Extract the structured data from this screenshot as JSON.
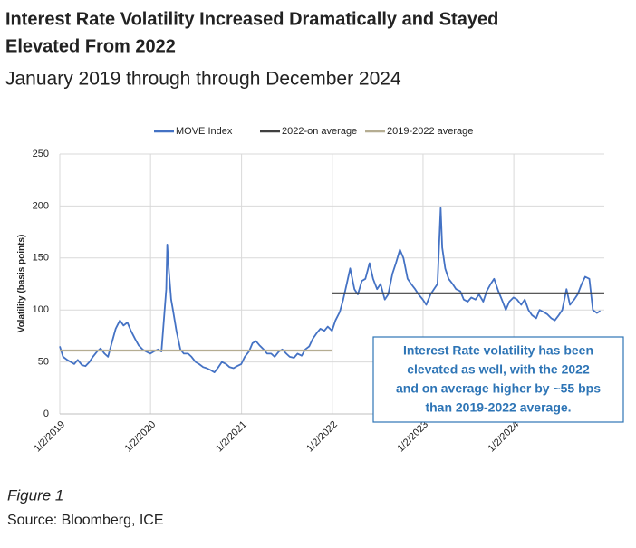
{
  "chart_data": {
    "type": "line",
    "title": [
      "Interest Rate Volatility Increased Dramatically and Stayed",
      "Elevated From 2022"
    ],
    "subtitle": "January 2019 through through December 2024",
    "y_label": "Volatility (basis points)",
    "caption": "Figure 1",
    "source": "Source: Bloomberg, ICE",
    "annotation": [
      "Interest Rate volatility has been",
      "elevated as well, with the 2022",
      "and on average higher by ~55 bps",
      "than 2019-2022 average."
    ],
    "xlim": [
      "2019-01-02",
      "2024-12-31"
    ],
    "xticks": [
      {
        "value": "2019-01-02",
        "label": "1/2/2019"
      },
      {
        "value": "2020-01-02",
        "label": "1/2/2020"
      },
      {
        "value": "2021-01-02",
        "label": "1/2/2021"
      },
      {
        "value": "2022-01-02",
        "label": "1/2/2022"
      },
      {
        "value": "2023-01-02",
        "label": "1/2/2023"
      },
      {
        "value": "2024-01-02",
        "label": "1/2/2024"
      }
    ],
    "ylim": [
      0,
      250
    ],
    "yticks": [
      0,
      50,
      100,
      150,
      200,
      250
    ],
    "grid": true,
    "legend": "top",
    "series": [
      {
        "name": "MOVE Index",
        "color": "#4472c4",
        "x": [
          "2019-01-02",
          "2019-01-15",
          "2019-02-01",
          "2019-02-15",
          "2019-03-01",
          "2019-03-15",
          "2019-04-01",
          "2019-04-15",
          "2019-05-01",
          "2019-05-15",
          "2019-06-01",
          "2019-06-15",
          "2019-07-01",
          "2019-07-15",
          "2019-08-01",
          "2019-08-15",
          "2019-09-01",
          "2019-09-15",
          "2019-10-01",
          "2019-10-15",
          "2019-11-01",
          "2019-11-15",
          "2019-12-01",
          "2019-12-15",
          "2020-01-01",
          "2020-01-15",
          "2020-02-01",
          "2020-02-15",
          "2020-03-05",
          "2020-03-09",
          "2020-03-15",
          "2020-03-25",
          "2020-04-01",
          "2020-04-15",
          "2020-05-01",
          "2020-05-15",
          "2020-06-01",
          "2020-06-15",
          "2020-07-01",
          "2020-07-15",
          "2020-08-01",
          "2020-08-15",
          "2020-09-01",
          "2020-09-15",
          "2020-10-01",
          "2020-10-15",
          "2020-11-01",
          "2020-11-15",
          "2020-12-01",
          "2020-12-15",
          "2021-01-01",
          "2021-01-15",
          "2021-02-01",
          "2021-02-15",
          "2021-03-01",
          "2021-03-15",
          "2021-04-01",
          "2021-04-15",
          "2021-05-01",
          "2021-05-15",
          "2021-06-01",
          "2021-06-15",
          "2021-07-01",
          "2021-07-15",
          "2021-08-01",
          "2021-08-15",
          "2021-09-01",
          "2021-09-15",
          "2021-10-01",
          "2021-10-15",
          "2021-11-01",
          "2021-11-15",
          "2021-12-01",
          "2021-12-15",
          "2022-01-01",
          "2022-01-15",
          "2022-02-01",
          "2022-02-15",
          "2022-03-01",
          "2022-03-15",
          "2022-04-01",
          "2022-04-15",
          "2022-05-01",
          "2022-05-15",
          "2022-06-01",
          "2022-06-15",
          "2022-07-01",
          "2022-07-15",
          "2022-08-01",
          "2022-08-15",
          "2022-09-01",
          "2022-09-15",
          "2022-10-01",
          "2022-10-15",
          "2022-11-01",
          "2022-11-15",
          "2022-12-01",
          "2022-12-15",
          "2023-01-01",
          "2023-01-15",
          "2023-02-01",
          "2023-02-15",
          "2023-03-01",
          "2023-03-14",
          "2023-03-20",
          "2023-04-01",
          "2023-04-15",
          "2023-05-01",
          "2023-05-15",
          "2023-06-01",
          "2023-06-15",
          "2023-07-01",
          "2023-07-15",
          "2023-08-01",
          "2023-08-15",
          "2023-09-01",
          "2023-09-15",
          "2023-10-01",
          "2023-10-15",
          "2023-11-01",
          "2023-11-15",
          "2023-12-01",
          "2023-12-15",
          "2024-01-01",
          "2024-01-15",
          "2024-02-01",
          "2024-02-15",
          "2024-03-01",
          "2024-03-15",
          "2024-04-01",
          "2024-04-15",
          "2024-05-01",
          "2024-05-15",
          "2024-06-01",
          "2024-06-15",
          "2024-07-01",
          "2024-07-15",
          "2024-08-01",
          "2024-08-15",
          "2024-09-01",
          "2024-09-15",
          "2024-10-01",
          "2024-10-15",
          "2024-11-01",
          "2024-11-15",
          "2024-12-01",
          "2024-12-15"
        ],
        "values": [
          65,
          55,
          52,
          50,
          48,
          52,
          47,
          46,
          50,
          55,
          60,
          63,
          58,
          55,
          70,
          82,
          90,
          85,
          88,
          80,
          72,
          66,
          62,
          60,
          58,
          60,
          62,
          60,
          120,
          163,
          140,
          110,
          100,
          80,
          62,
          58,
          58,
          55,
          50,
          48,
          45,
          44,
          42,
          40,
          45,
          50,
          48,
          45,
          44,
          46,
          48,
          55,
          60,
          68,
          70,
          66,
          62,
          58,
          58,
          55,
          60,
          62,
          58,
          55,
          54,
          58,
          56,
          62,
          65,
          72,
          78,
          82,
          80,
          84,
          80,
          90,
          98,
          110,
          125,
          140,
          120,
          115,
          128,
          130,
          145,
          130,
          120,
          125,
          110,
          115,
          135,
          145,
          158,
          150,
          130,
          125,
          120,
          115,
          110,
          105,
          115,
          120,
          125,
          198,
          160,
          140,
          130,
          125,
          120,
          118,
          110,
          108,
          112,
          110,
          115,
          108,
          118,
          125,
          130,
          118,
          110,
          100,
          108,
          112,
          110,
          105,
          110,
          100,
          95,
          92,
          100,
          98,
          96,
          92,
          90,
          95,
          100,
          120,
          105,
          110,
          115,
          125,
          132,
          130,
          100,
          97,
          99
        ]
      },
      {
        "name": "2022-on average",
        "color": "#404040",
        "x": [
          "2022-01-02",
          "2024-12-31"
        ],
        "values": [
          116,
          116
        ]
      },
      {
        "name": "2019-2022 average",
        "color": "#b5ad92",
        "x": [
          "2019-01-02",
          "2022-01-02"
        ],
        "values": [
          61,
          61
        ]
      }
    ]
  }
}
